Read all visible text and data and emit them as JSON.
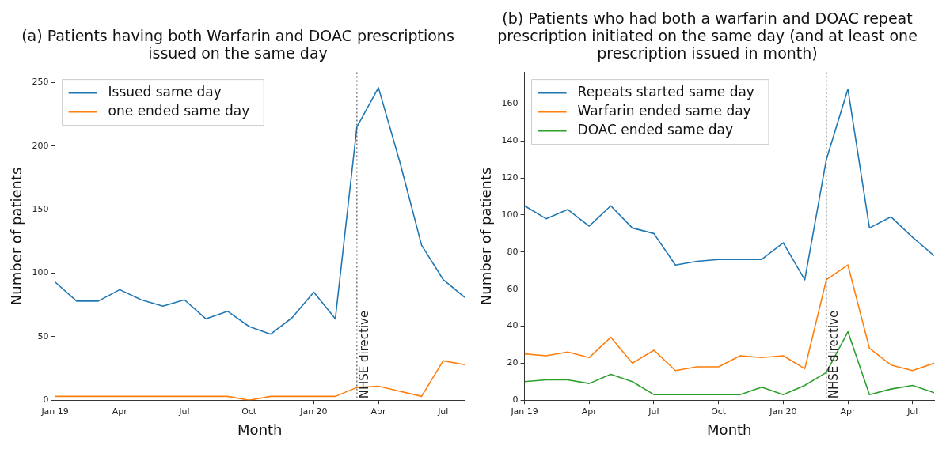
{
  "chart_data": [
    {
      "type": "line",
      "title": "(a) Patients having both Warfarin and DOAC prescriptions issued on the same day",
      "xlabel": "Month",
      "ylabel": "Number of patients",
      "x": [
        "2019-01",
        "2019-02",
        "2019-03",
        "2019-04",
        "2019-05",
        "2019-06",
        "2019-07",
        "2019-08",
        "2019-09",
        "2019-10",
        "2019-11",
        "2019-12",
        "2020-01",
        "2020-02",
        "2020-03",
        "2020-04",
        "2020-05",
        "2020-06",
        "2020-07",
        "2020-08"
      ],
      "series": [
        {
          "name": "Issued same day",
          "color": "#1f77b4",
          "values": [
            93,
            78,
            78,
            87,
            79,
            74,
            79,
            64,
            70,
            58,
            52,
            65,
            85,
            64,
            215,
            246,
            187,
            122,
            95,
            81
          ]
        },
        {
          "name": "one ended same day",
          "color": "#ff7f0e",
          "values": [
            3,
            3,
            3,
            3,
            3,
            3,
            3,
            3,
            3,
            0,
            3,
            3,
            3,
            3,
            10,
            11,
            7,
            3,
            31,
            28
          ]
        }
      ],
      "xlim": [
        "2019-01",
        "2020-08"
      ],
      "xticks": [
        {
          "value": "2019-01",
          "label": "Jan 19"
        },
        {
          "value": "2019-04",
          "label": "Apr"
        },
        {
          "value": "2019-07",
          "label": "Jul"
        },
        {
          "value": "2019-10",
          "label": "Oct"
        },
        {
          "value": "2020-01",
          "label": "Jan 20"
        },
        {
          "value": "2020-04",
          "label": "Apr"
        },
        {
          "value": "2020-07",
          "label": "Jul"
        }
      ],
      "ylim": [
        0,
        258
      ],
      "yticks": [
        0,
        50,
        100,
        150,
        200,
        250
      ],
      "ref_lines": [
        {
          "axis": "x",
          "value": "2020-03",
          "label": "NHSE directive",
          "line_style": "dotted",
          "color": "#555555"
        }
      ],
      "grid": false,
      "legend": "top left",
      "marker": "none",
      "line_style": "solid"
    },
    {
      "type": "line",
      "title": "(b) Patients who had both a warfarin and DOAC repeat prescription initiated on the same day (and at least one prescription issued in month)",
      "xlabel": "Month",
      "ylabel": "Number of patients",
      "x": [
        "2019-01",
        "2019-02",
        "2019-03",
        "2019-04",
        "2019-05",
        "2019-06",
        "2019-07",
        "2019-08",
        "2019-09",
        "2019-10",
        "2019-11",
        "2019-12",
        "2020-01",
        "2020-02",
        "2020-03",
        "2020-04",
        "2020-05",
        "2020-06",
        "2020-07",
        "2020-08"
      ],
      "series": [
        {
          "name": "Repeats started same day",
          "color": "#1f77b4",
          "values": [
            105,
            98,
            103,
            94,
            105,
            93,
            90,
            73,
            75,
            76,
            76,
            76,
            85,
            65,
            130,
            168,
            93,
            99,
            88,
            78
          ]
        },
        {
          "name": "Warfarin ended same day",
          "color": "#ff7f0e",
          "values": [
            25,
            24,
            26,
            23,
            34,
            20,
            27,
            16,
            18,
            18,
            24,
            23,
            24,
            17,
            65,
            73,
            28,
            19,
            16,
            20
          ]
        },
        {
          "name": "DOAC ended same day",
          "color": "#2ca02c",
          "values": [
            10,
            11,
            11,
            9,
            14,
            10,
            3,
            3,
            3,
            3,
            3,
            7,
            3,
            8,
            15,
            37,
            3,
            6,
            8,
            4
          ]
        }
      ],
      "xlim": [
        "2019-01",
        "2020-08"
      ],
      "xticks": [
        {
          "value": "2019-01",
          "label": "Jan 19"
        },
        {
          "value": "2019-04",
          "label": "Apr"
        },
        {
          "value": "2019-07",
          "label": "Jul"
        },
        {
          "value": "2019-10",
          "label": "Oct"
        },
        {
          "value": "2020-01",
          "label": "Jan 20"
        },
        {
          "value": "2020-04",
          "label": "Apr"
        },
        {
          "value": "2020-07",
          "label": "Jul"
        }
      ],
      "ylim": [
        0,
        177
      ],
      "yticks": [
        0,
        20,
        40,
        60,
        80,
        100,
        120,
        140,
        160
      ],
      "ref_lines": [
        {
          "axis": "x",
          "value": "2020-03",
          "label": "NHSE directive",
          "line_style": "dotted",
          "color": "#555555"
        }
      ],
      "grid": false,
      "legend": "top left",
      "marker": "none",
      "line_style": "solid"
    }
  ]
}
